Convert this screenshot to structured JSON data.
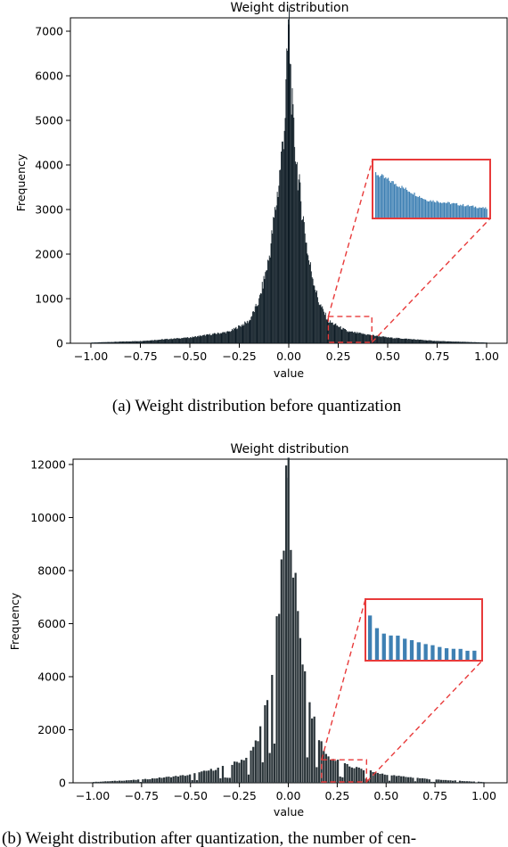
{
  "chart_data": [
    {
      "type": "bar",
      "title": "Weight distribution",
      "xlabel": "value",
      "ylabel": "Frequency",
      "xlim": [
        -1.05,
        1.05
      ],
      "ylim": [
        0,
        7300
      ],
      "xticks": [
        "−1.00",
        "−0.75",
        "−0.50",
        "−0.25",
        "0.00",
        "0.25",
        "0.50",
        "0.75",
        "1.00"
      ],
      "yticks": [
        "0",
        "1000",
        "2000",
        "3000",
        "4000",
        "5000",
        "6000",
        "7000"
      ],
      "peak": {
        "x": 0.0,
        "y": 7150
      },
      "profile": {
        "x": [
          0.0,
          0.02,
          0.05,
          0.1,
          0.15,
          0.2,
          0.3,
          0.5,
          0.75,
          1.0
        ],
        "y": [
          7150,
          5000,
          3600,
          1900,
          950,
          500,
          260,
          130,
          50,
          15
        ]
      },
      "zoom_range": [
        0.2,
        0.42
      ],
      "bar_color": "#0d1b24",
      "inset_color": "#3e80b3",
      "highlight_color": "#e83a3a",
      "caption": "(a)  Weight distribution before quantization"
    },
    {
      "type": "bar",
      "title": "Weight distribution",
      "xlabel": "value",
      "ylabel": "Frequency",
      "xlim": [
        -1.05,
        1.05
      ],
      "ylim": [
        0,
        12200
      ],
      "xticks": [
        "−1.00",
        "−0.75",
        "−0.50",
        "−0.25",
        "0.00",
        "0.25",
        "0.50",
        "0.75",
        "1.00"
      ],
      "yticks": [
        "0",
        "2000",
        "4000",
        "6000",
        "8000",
        "10000",
        "12000"
      ],
      "peak": {
        "x": 0.0,
        "y": 11500
      },
      "profile": {
        "x": [
          0.0,
          0.02,
          0.05,
          0.1,
          0.15,
          0.2,
          0.3,
          0.5,
          0.75,
          1.0
        ],
        "y": [
          11500,
          9000,
          6200,
          3300,
          1800,
          1000,
          650,
          300,
          120,
          30
        ]
      },
      "zoom_range": [
        0.17,
        0.4
      ],
      "bar_color": "#2a3439",
      "inset_color": "#3e80b3",
      "highlight_color": "#e83a3a",
      "caption": "(b)  Weight distribution after quantization, the number of cen-"
    }
  ]
}
